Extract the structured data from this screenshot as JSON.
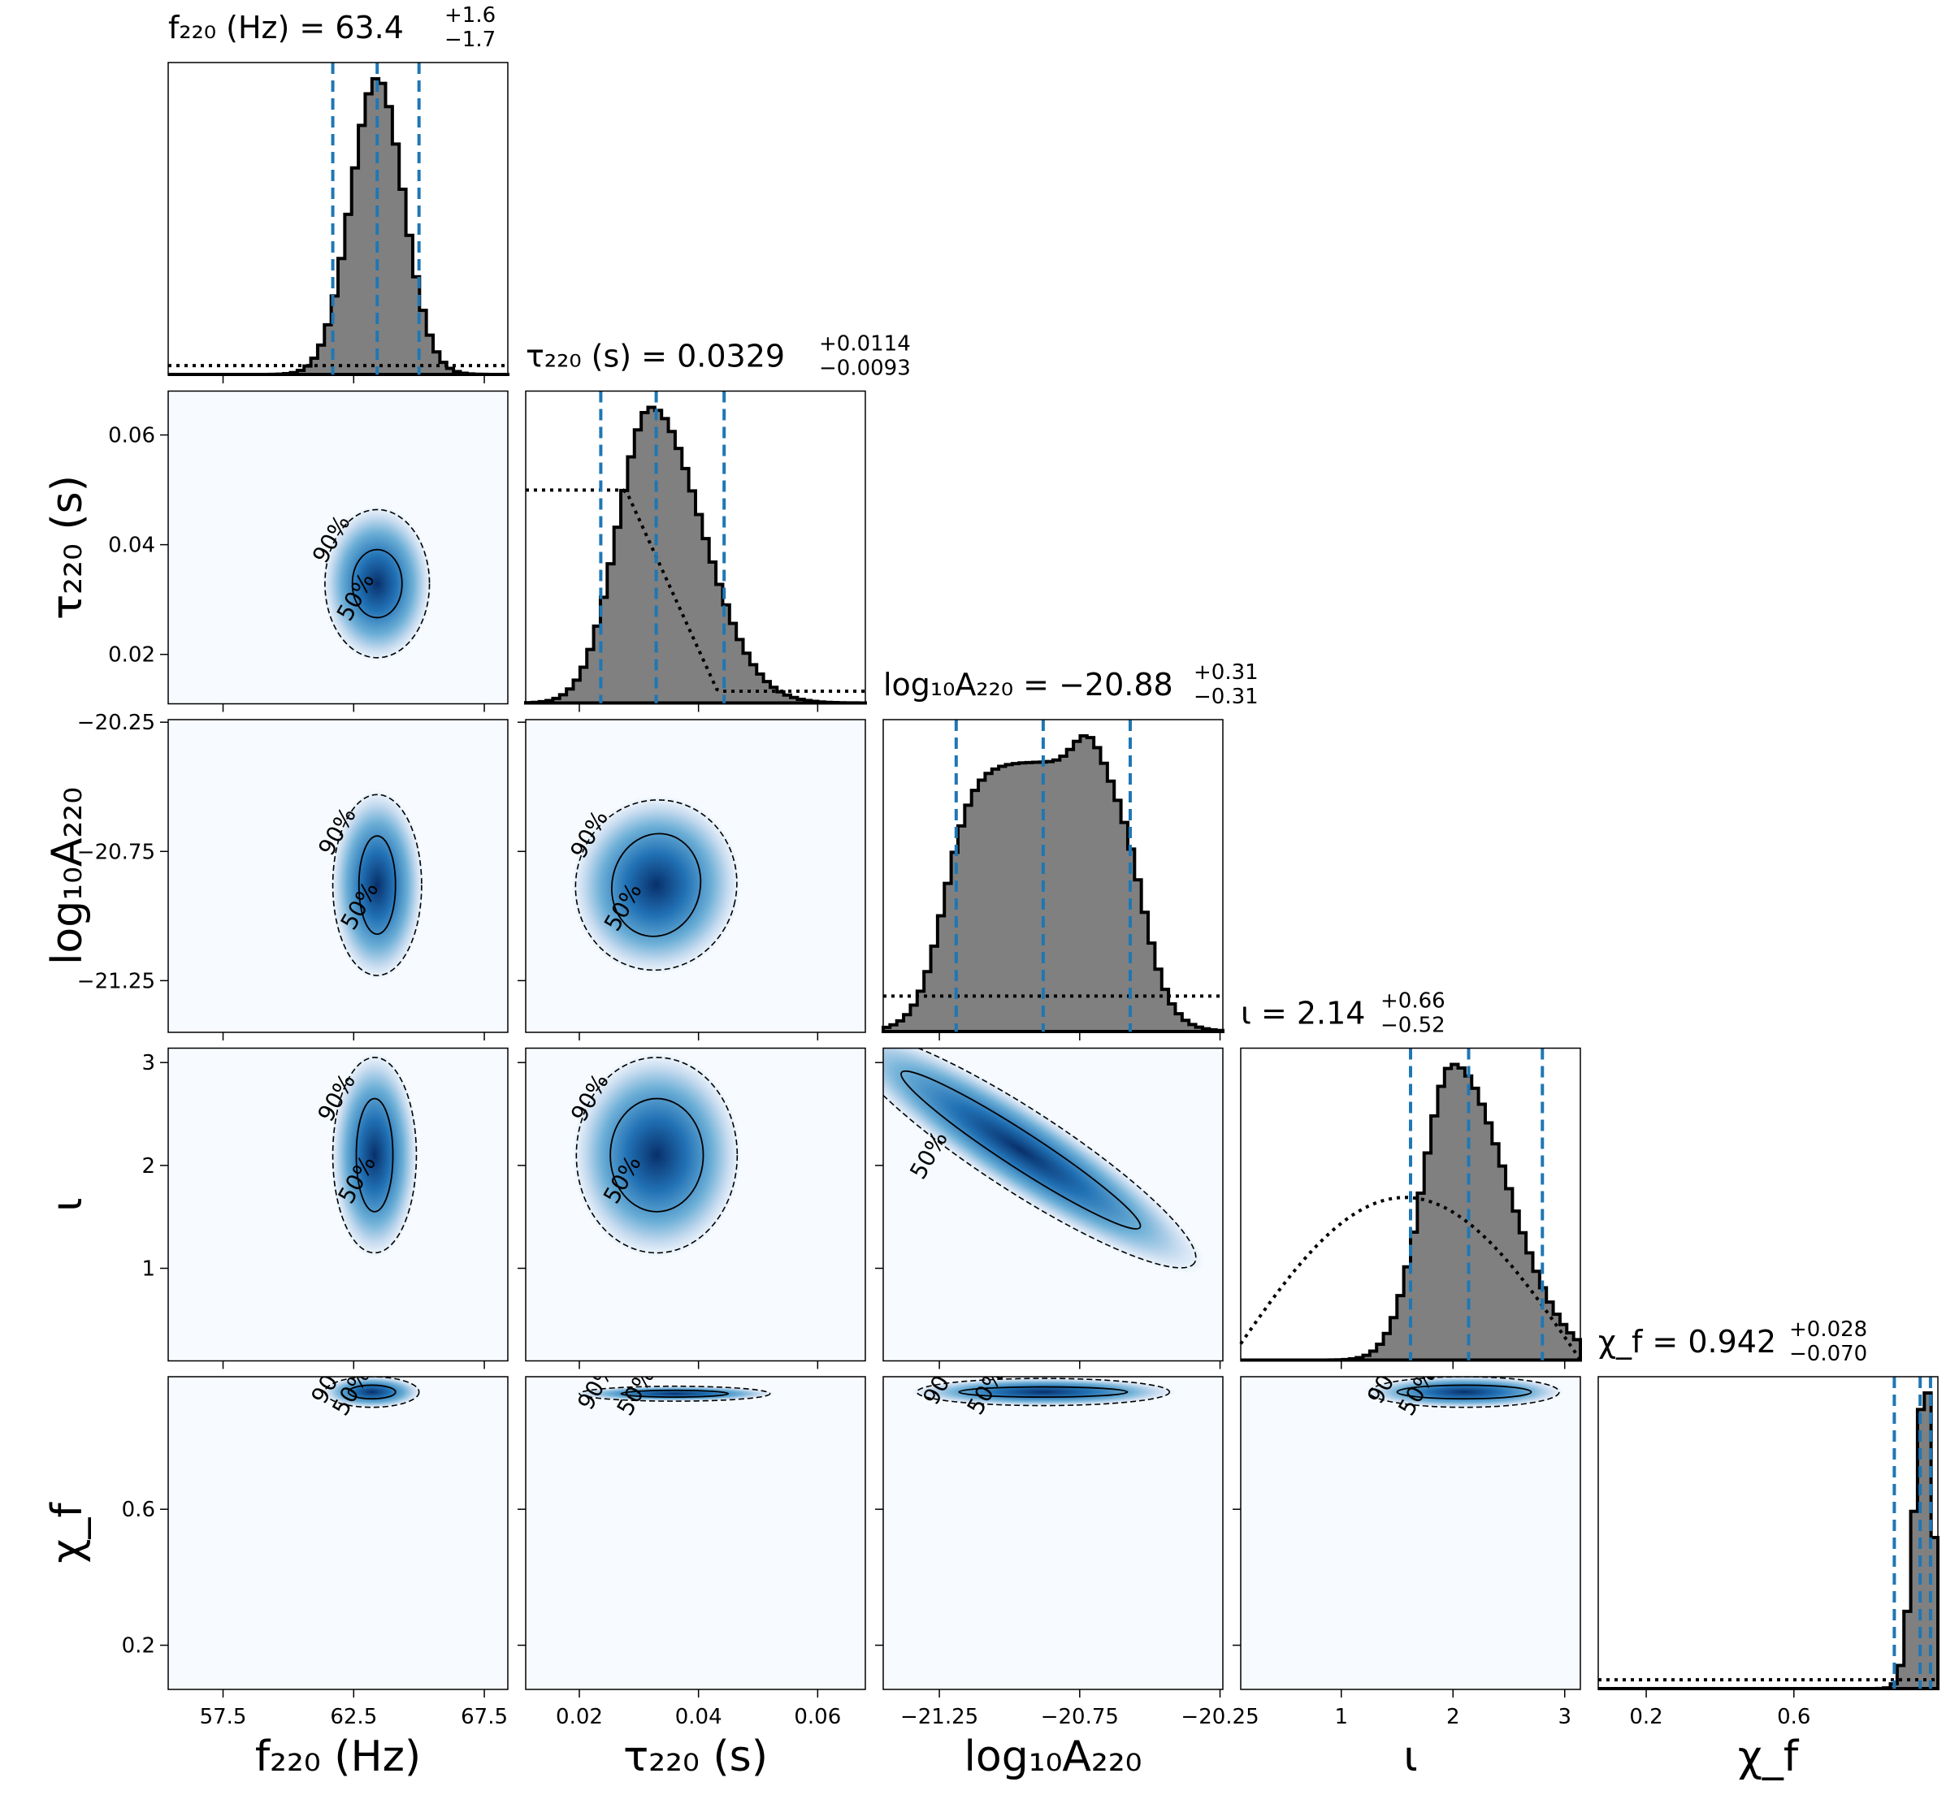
{
  "chart_data": {
    "type": "corner",
    "parameters": [
      {
        "key": "f220",
        "label": "f₂₂₀ (Hz)",
        "ticks": [
          57.5,
          62.5,
          67.5
        ],
        "tick_labels": [
          "57.5",
          "62.5",
          "67.5"
        ],
        "range": [
          55.4,
          68.4
        ]
      },
      {
        "key": "tau220",
        "label": "τ₂₂₀ (s)",
        "ticks": [
          0.02,
          0.04,
          0.06
        ],
        "tick_labels": [
          "0.02",
          "0.04",
          "0.06"
        ],
        "range": [
          0.011,
          0.068
        ]
      },
      {
        "key": "logA220",
        "label": "log₁₀A₂₂₀",
        "ticks": [
          -21.25,
          -20.75,
          -20.25
        ],
        "tick_labels": [
          "−21.25",
          "−20.75",
          "−20.25"
        ],
        "range": [
          -21.45,
          -20.24
        ]
      },
      {
        "key": "iota",
        "label": "ι",
        "ticks": [
          1,
          2,
          3
        ],
        "tick_labels": [
          "1",
          "2",
          "3"
        ],
        "range": [
          0.1,
          3.14
        ]
      },
      {
        "key": "chi_f",
        "label": "χ_f",
        "ticks": [
          0.2,
          0.6
        ],
        "tick_labels": [
          "0.2",
          "0.6"
        ],
        "range": [
          0.07,
          0.99
        ]
      }
    ],
    "diag_titles": [
      {
        "name": "f₂₂₀ (Hz)",
        "median": "63.4",
        "plus": "+1.6",
        "minus": "−1.7"
      },
      {
        "name": "τ₂₂₀ (s)",
        "median": "0.0329",
        "plus": "+0.0114",
        "minus": "−0.0093"
      },
      {
        "name": "log₁₀A₂₂₀",
        "median": "−20.88",
        "plus": "+0.31",
        "minus": "−0.31"
      },
      {
        "name": "ι",
        "median": "2.14",
        "plus": "+0.66",
        "minus": "−0.52"
      },
      {
        "name": "χ_f",
        "median": "0.942",
        "plus": "+0.028",
        "minus": "−0.070"
      }
    ],
    "marginals": [
      {
        "median": 63.4,
        "lower": 61.7,
        "upper": 65.0,
        "posterior": {
          "center": 63.4,
          "sigma": 1.0,
          "kind": "gauss"
        },
        "prior": {
          "kind": "flat",
          "level": 0.03
        }
      },
      {
        "median": 0.0329,
        "lower": 0.0236,
        "upper": 0.0443,
        "posterior": {
          "center": 0.032,
          "sigma_left": 0.0055,
          "sigma_right": 0.0085,
          "kind": "skew"
        },
        "prior": {
          "kind": "decay",
          "start": 0.011,
          "level": 0.72,
          "drop": 0.028,
          "floor": 0.04
        }
      },
      {
        "median": -20.88,
        "lower": -21.19,
        "upper": -20.57,
        "posterior": {
          "kind": "plateau",
          "low": -21.23,
          "high": -20.53,
          "soft": 0.05,
          "peak": -20.72
        },
        "prior": {
          "kind": "flat",
          "level": 0.12
        }
      },
      {
        "median": 2.14,
        "lower": 1.62,
        "upper": 2.8,
        "posterior": {
          "center": 2.0,
          "sigma_left": 0.27,
          "sigma_right": 0.48,
          "kind": "skew"
        },
        "prior": {
          "kind": "sine",
          "level": 0.55
        }
      },
      {
        "median": 0.942,
        "lower": 0.872,
        "upper": 0.97,
        "posterior": {
          "center": 0.957,
          "sigma_left": 0.03,
          "sigma_right": 0.02,
          "kind": "skew",
          "trunc": 0.99
        },
        "prior": {
          "kind": "flat",
          "level": 0.03
        }
      }
    ],
    "contour_levels": [
      "50%",
      "90%"
    ],
    "joint": [
      {
        "i": 1,
        "j": 0,
        "center": [
          63.4,
          0.0329
        ],
        "r50": [
          0.95,
          0.0062
        ],
        "r90": [
          2.0,
          0.0135
        ]
      },
      {
        "i": 2,
        "j": 0,
        "center": [
          63.4,
          -20.88
        ],
        "r50": [
          0.7,
          0.19
        ],
        "r90": [
          1.7,
          0.35
        ]
      },
      {
        "i": 2,
        "j": 1,
        "center": [
          0.0329,
          -20.88
        ],
        "r50": [
          0.0074,
          0.2
        ],
        "r90": [
          0.0135,
          0.33
        ],
        "tilt": -0.3
      },
      {
        "i": 3,
        "j": 0,
        "center": [
          63.3,
          2.1
        ],
        "r50": [
          0.7,
          0.55
        ],
        "r90": [
          1.6,
          0.95
        ]
      },
      {
        "i": 3,
        "j": 1,
        "center": [
          0.033,
          2.1
        ],
        "r50": [
          0.0078,
          0.55
        ],
        "r90": [
          0.0135,
          0.95
        ]
      },
      {
        "i": 3,
        "j": 2,
        "center": [
          -20.96,
          2.15
        ],
        "r50": [
          0.27,
          0.13
        ],
        "r90": [
          0.36,
          0.2
        ],
        "slope": -1.45
      },
      {
        "i": 4,
        "j": 0,
        "center": [
          63.2,
          0.945
        ],
        "r50": [
          0.9,
          0.02
        ],
        "r90": [
          1.8,
          0.045
        ]
      },
      {
        "i": 4,
        "j": 1,
        "center": [
          0.036,
          0.94
        ],
        "r50": [
          0.009,
          0.01
        ],
        "r90": [
          0.016,
          0.022
        ],
        "arc": true
      },
      {
        "i": 4,
        "j": 2,
        "center": [
          -20.88,
          0.945
        ],
        "r50": [
          0.3,
          0.015
        ],
        "r90": [
          0.45,
          0.04
        ]
      },
      {
        "i": 4,
        "j": 3,
        "center": [
          2.1,
          0.945
        ],
        "r50": [
          0.6,
          0.02
        ],
        "r90": [
          0.85,
          0.045
        ]
      }
    ],
    "colors": {
      "hist_fill": "#808080",
      "hist_edge": "#000000",
      "quantile_line": "#1f77b4",
      "density_low": "#f7fbff",
      "density_high": "#08306b"
    }
  }
}
